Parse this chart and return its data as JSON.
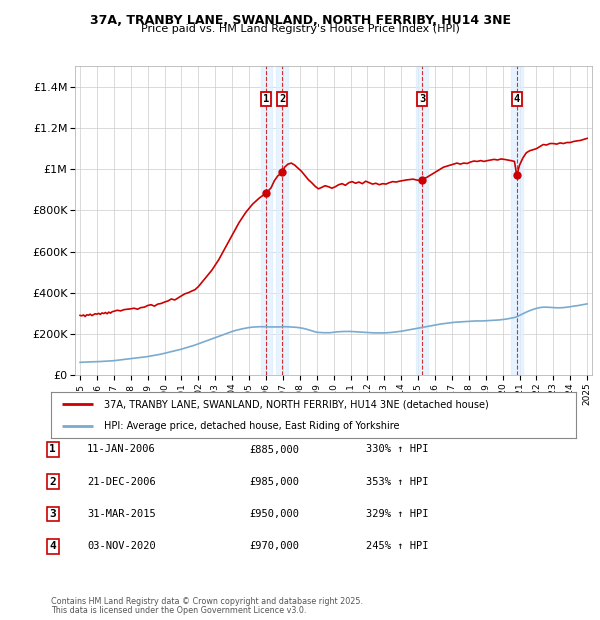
{
  "title1": "37A, TRANBY LANE, SWANLAND, NORTH FERRIBY, HU14 3NE",
  "title2": "Price paid vs. HM Land Registry's House Price Index (HPI)",
  "ylim": [
    0,
    1500000
  ],
  "yticks": [
    0,
    200000,
    400000,
    600000,
    800000,
    1000000,
    1200000,
    1400000
  ],
  "ytick_labels": [
    "£0",
    "£200K",
    "£400K",
    "£600K",
    "£800K",
    "£1M",
    "£1.2M",
    "£1.4M"
  ],
  "xlim_start": 1994.7,
  "xlim_end": 2025.3,
  "transactions": [
    {
      "num": 1,
      "date": "11-JAN-2006",
      "year": 2006.03,
      "price": 885000,
      "pct": "330%",
      "label": "1"
    },
    {
      "num": 2,
      "date": "21-DEC-2006",
      "year": 2006.97,
      "price": 985000,
      "pct": "353%",
      "label": "2"
    },
    {
      "num": 3,
      "date": "31-MAR-2015",
      "year": 2015.25,
      "price": 950000,
      "pct": "329%",
      "label": "3"
    },
    {
      "num": 4,
      "date": "03-NOV-2020",
      "year": 2020.84,
      "price": 970000,
      "pct": "245%",
      "label": "4"
    }
  ],
  "legend_line1": "37A, TRANBY LANE, SWANLAND, NORTH FERRIBY, HU14 3NE (detached house)",
  "legend_line2": "HPI: Average price, detached house, East Riding of Yorkshire",
  "footer1": "Contains HM Land Registry data © Crown copyright and database right 2025.",
  "footer2": "This data is licensed under the Open Government Licence v3.0.",
  "red_color": "#cc0000",
  "blue_color": "#7aabcf",
  "bg_color": "#ffffff",
  "grid_color": "#cccccc",
  "shade_color": "#ddeeff",
  "marker_box_color": "#cc0000",
  "dashed_line_color": "#cc0000",
  "red_line": {
    "x": [
      1995.0,
      1995.1,
      1995.2,
      1995.3,
      1995.4,
      1995.5,
      1995.6,
      1995.7,
      1995.8,
      1995.9,
      1996.0,
      1996.1,
      1996.2,
      1996.3,
      1996.4,
      1996.5,
      1996.6,
      1996.7,
      1996.8,
      1996.9,
      1997.0,
      1997.2,
      1997.4,
      1997.6,
      1997.8,
      1998.0,
      1998.2,
      1998.4,
      1998.6,
      1998.8,
      1999.0,
      1999.2,
      1999.4,
      1999.6,
      1999.8,
      2000.0,
      2000.2,
      2000.4,
      2000.6,
      2000.8,
      2001.0,
      2001.2,
      2001.4,
      2001.6,
      2001.8,
      2002.0,
      2002.2,
      2002.4,
      2002.6,
      2002.8,
      2003.0,
      2003.2,
      2003.4,
      2003.6,
      2003.8,
      2004.0,
      2004.2,
      2004.4,
      2004.6,
      2004.8,
      2005.0,
      2005.2,
      2005.4,
      2005.6,
      2005.8,
      2006.03,
      2006.3,
      2006.5,
      2006.7,
      2006.97,
      2007.1,
      2007.3,
      2007.5,
      2007.7,
      2007.9,
      2008.1,
      2008.3,
      2008.5,
      2008.7,
      2008.9,
      2009.1,
      2009.3,
      2009.5,
      2009.7,
      2009.9,
      2010.1,
      2010.3,
      2010.5,
      2010.7,
      2010.9,
      2011.1,
      2011.3,
      2011.5,
      2011.7,
      2011.9,
      2012.1,
      2012.3,
      2012.5,
      2012.7,
      2012.9,
      2013.1,
      2013.3,
      2013.5,
      2013.7,
      2013.9,
      2014.1,
      2014.3,
      2014.5,
      2014.7,
      2014.9,
      2015.1,
      2015.25,
      2015.5,
      2015.7,
      2015.9,
      2016.1,
      2016.3,
      2016.5,
      2016.7,
      2016.9,
      2017.1,
      2017.3,
      2017.5,
      2017.7,
      2017.9,
      2018.1,
      2018.3,
      2018.5,
      2018.7,
      2018.9,
      2019.1,
      2019.3,
      2019.5,
      2019.7,
      2019.9,
      2020.1,
      2020.3,
      2020.5,
      2020.7,
      2020.84,
      2021.0,
      2021.2,
      2021.4,
      2021.6,
      2021.8,
      2022.0,
      2022.2,
      2022.4,
      2022.6,
      2022.8,
      2023.0,
      2023.2,
      2023.4,
      2023.6,
      2023.8,
      2024.0,
      2024.2,
      2024.4,
      2024.6,
      2024.8,
      2025.0
    ],
    "y": [
      290000,
      288000,
      292000,
      285000,
      293000,
      291000,
      296000,
      289000,
      294000,
      298000,
      296000,
      300000,
      295000,
      302000,
      299000,
      304000,
      298000,
      306000,
      301000,
      308000,
      310000,
      315000,
      312000,
      318000,
      320000,
      322000,
      325000,
      320000,
      328000,
      330000,
      338000,
      342000,
      335000,
      345000,
      348000,
      355000,
      360000,
      370000,
      365000,
      375000,
      385000,
      395000,
      400000,
      408000,
      415000,
      430000,
      450000,
      470000,
      490000,
      510000,
      535000,
      560000,
      590000,
      620000,
      650000,
      680000,
      710000,
      740000,
      765000,
      790000,
      810000,
      830000,
      845000,
      860000,
      872000,
      885000,
      910000,
      945000,
      968000,
      985000,
      1010000,
      1025000,
      1030000,
      1020000,
      1005000,
      990000,
      970000,
      950000,
      935000,
      918000,
      905000,
      912000,
      920000,
      915000,
      908000,
      915000,
      925000,
      930000,
      922000,
      935000,
      940000,
      932000,
      938000,
      930000,
      942000,
      935000,
      928000,
      932000,
      925000,
      930000,
      928000,
      935000,
      940000,
      938000,
      942000,
      945000,
      948000,
      950000,
      952000,
      948000,
      945000,
      950000,
      960000,
      970000,
      980000,
      990000,
      1000000,
      1010000,
      1015000,
      1020000,
      1025000,
      1030000,
      1025000,
      1030000,
      1028000,
      1035000,
      1040000,
      1038000,
      1042000,
      1038000,
      1042000,
      1045000,
      1048000,
      1045000,
      1050000,
      1048000,
      1045000,
      1042000,
      1038000,
      970000,
      1020000,
      1055000,
      1080000,
      1090000,
      1095000,
      1100000,
      1110000,
      1120000,
      1118000,
      1125000,
      1125000,
      1122000,
      1128000,
      1125000,
      1130000,
      1130000,
      1135000,
      1138000,
      1140000,
      1145000,
      1150000
    ]
  },
  "blue_line": {
    "x": [
      1995.0,
      1995.2,
      1995.4,
      1995.6,
      1995.8,
      1996.0,
      1996.2,
      1996.4,
      1996.6,
      1996.8,
      1997.0,
      1997.2,
      1997.4,
      1997.6,
      1997.8,
      1998.0,
      1998.2,
      1998.4,
      1998.6,
      1998.8,
      1999.0,
      1999.2,
      1999.4,
      1999.6,
      1999.8,
      2000.0,
      2000.2,
      2000.4,
      2000.6,
      2000.8,
      2001.0,
      2001.2,
      2001.4,
      2001.6,
      2001.8,
      2002.0,
      2002.2,
      2002.4,
      2002.6,
      2002.8,
      2003.0,
      2003.2,
      2003.4,
      2003.6,
      2003.8,
      2004.0,
      2004.2,
      2004.4,
      2004.6,
      2004.8,
      2005.0,
      2005.2,
      2005.4,
      2005.6,
      2005.8,
      2006.0,
      2006.2,
      2006.4,
      2006.6,
      2006.8,
      2007.0,
      2007.2,
      2007.4,
      2007.6,
      2007.8,
      2008.0,
      2008.2,
      2008.4,
      2008.6,
      2008.8,
      2009.0,
      2009.2,
      2009.4,
      2009.6,
      2009.8,
      2010.0,
      2010.2,
      2010.4,
      2010.6,
      2010.8,
      2011.0,
      2011.2,
      2011.4,
      2011.6,
      2011.8,
      2012.0,
      2012.2,
      2012.4,
      2012.6,
      2012.8,
      2013.0,
      2013.2,
      2013.4,
      2013.6,
      2013.8,
      2014.0,
      2014.2,
      2014.4,
      2014.6,
      2014.8,
      2015.0,
      2015.2,
      2015.4,
      2015.6,
      2015.8,
      2016.0,
      2016.2,
      2016.4,
      2016.6,
      2016.8,
      2017.0,
      2017.2,
      2017.4,
      2017.6,
      2017.8,
      2018.0,
      2018.2,
      2018.4,
      2018.6,
      2018.8,
      2019.0,
      2019.2,
      2019.4,
      2019.6,
      2019.8,
      2020.0,
      2020.2,
      2020.4,
      2020.6,
      2020.8,
      2021.0,
      2021.2,
      2021.4,
      2021.6,
      2021.8,
      2022.0,
      2022.2,
      2022.4,
      2022.6,
      2022.8,
      2023.0,
      2023.2,
      2023.4,
      2023.6,
      2023.8,
      2024.0,
      2024.2,
      2024.4,
      2024.6,
      2024.8,
      2025.0
    ],
    "y": [
      62000,
      63000,
      63500,
      64000,
      64500,
      65000,
      66000,
      67000,
      68000,
      69000,
      70000,
      72000,
      74000,
      76000,
      78000,
      80000,
      82000,
      84000,
      86000,
      88000,
      90000,
      93000,
      96000,
      99000,
      102000,
      106000,
      110000,
      114000,
      118000,
      122000,
      126000,
      131000,
      136000,
      141000,
      146000,
      152000,
      158000,
      164000,
      170000,
      176000,
      182000,
      188000,
      194000,
      200000,
      206000,
      212000,
      217000,
      221000,
      225000,
      228000,
      231000,
      233000,
      234000,
      235000,
      235000,
      235000,
      234000,
      234000,
      234000,
      234000,
      235000,
      235000,
      234000,
      233000,
      232000,
      230000,
      227000,
      223000,
      218000,
      213000,
      208000,
      207000,
      206000,
      206000,
      206000,
      208000,
      210000,
      211000,
      212000,
      212000,
      212000,
      211000,
      210000,
      209000,
      208000,
      207000,
      206000,
      205000,
      205000,
      205000,
      205000,
      206000,
      207000,
      209000,
      211000,
      213000,
      216000,
      219000,
      222000,
      225000,
      228000,
      231000,
      234000,
      237000,
      240000,
      243000,
      246000,
      249000,
      251000,
      253000,
      255000,
      257000,
      258000,
      259000,
      260000,
      261000,
      262000,
      263000,
      263000,
      263000,
      264000,
      265000,
      266000,
      267000,
      268000,
      270000,
      272000,
      275000,
      278000,
      282000,
      290000,
      298000,
      306000,
      313000,
      319000,
      324000,
      328000,
      330000,
      330000,
      329000,
      328000,
      327000,
      327000,
      328000,
      330000,
      332000,
      335000,
      337000,
      340000,
      343000,
      346000
    ]
  }
}
